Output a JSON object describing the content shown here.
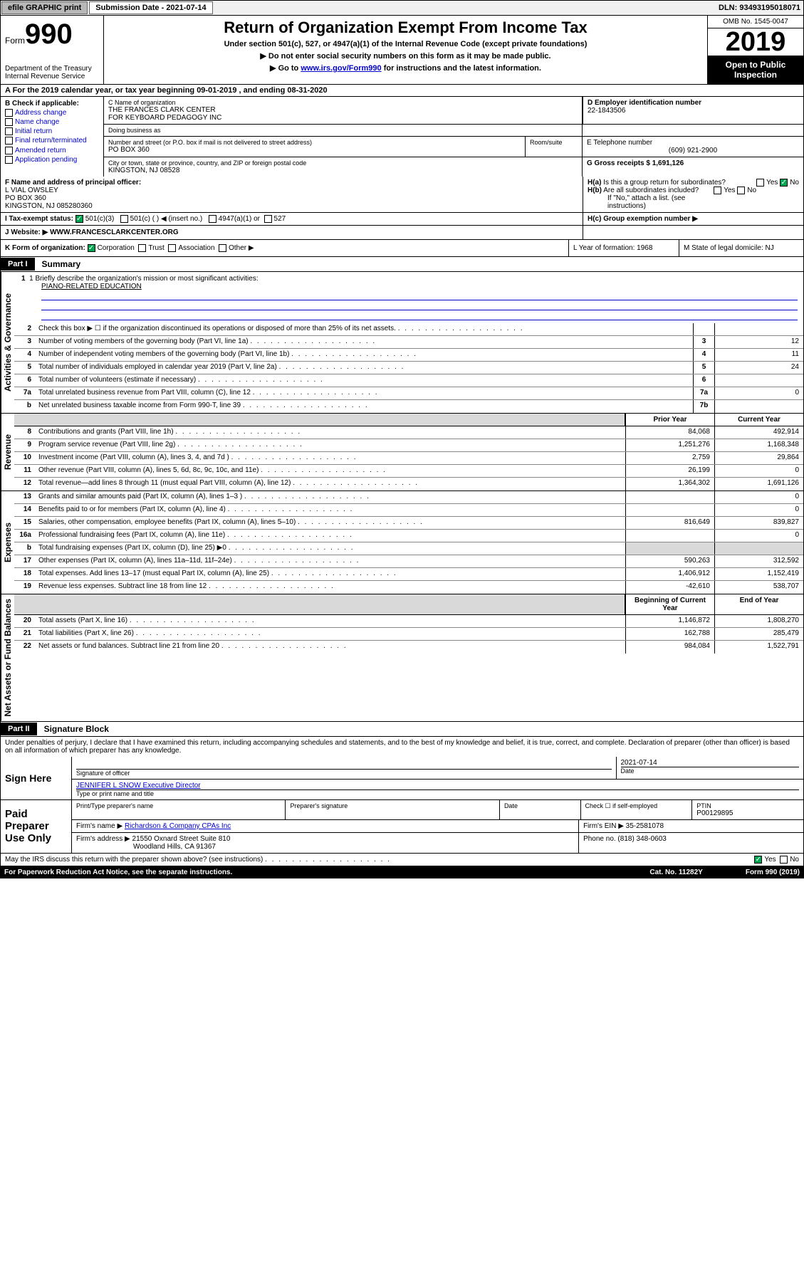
{
  "topbar": {
    "efile": "efile GRAPHIC print",
    "submission": "Submission Date - 2021-07-14",
    "dln": "DLN: 93493195018071"
  },
  "header": {
    "form_word": "Form",
    "form_num": "990",
    "dept": "Department of the Treasury",
    "irs": "Internal Revenue Service",
    "title": "Return of Organization Exempt From Income Tax",
    "subtitle": "Under section 501(c), 527, or 4947(a)(1) of the Internal Revenue Code (except private foundations)",
    "note1": "▶ Do not enter social security numbers on this form as it may be made public.",
    "note2_pre": "▶ Go to ",
    "note2_link": "www.irs.gov/Form990",
    "note2_post": " for instructions and the latest information.",
    "omb": "OMB No. 1545-0047",
    "year": "2019",
    "open": "Open to Public Inspection"
  },
  "row_a": "A For the 2019 calendar year, or tax year beginning 09-01-2019    , and ending 08-31-2020",
  "colB": {
    "hdr": "B Check if applicable:",
    "items": [
      "Address change",
      "Name change",
      "Initial return",
      "Final return/terminated",
      "Amended return",
      "Application pending"
    ]
  },
  "colC": {
    "name_label": "C Name of organization",
    "name": "THE FRANCES CLARK CENTER\nFOR KEYBOARD PEDAGOGY INC",
    "dba_label": "Doing business as",
    "dba": "",
    "addr_label": "Number and street (or P.O. box if mail is not delivered to street address)",
    "room_label": "Room/suite",
    "addr": "PO BOX 360",
    "city_label": "City or town, state or province, country, and ZIP or foreign postal code",
    "city": "KINGSTON, NJ  08528"
  },
  "colD": {
    "ein_label": "D Employer identification number",
    "ein": "22-1843506",
    "phone_label": "E Telephone number",
    "phone": "(609) 921-2900",
    "gross_label": "G Gross receipts $ ",
    "gross": "1,691,126"
  },
  "rowF": {
    "label": "F  Name and address of principal officer:",
    "name": "L VIAL OWSLEY",
    "addr1": "PO BOX 360",
    "addr2": "KINGSTON, NJ  085280360"
  },
  "rowH": {
    "ha": "H(a)  Is this a group return for subordinates?",
    "hb": "H(b)  Are all subordinates included?",
    "hb2": "If \"No,\" attach a list. (see instructions)",
    "hc": "H(c)  Group exemption number ▶"
  },
  "rowI": {
    "label": "I   Tax-exempt status:",
    "opts": [
      "501(c)(3)",
      "501(c) (  ) ◀ (insert no.)",
      "4947(a)(1) or",
      "527"
    ]
  },
  "rowJ": {
    "label": "J   Website: ▶",
    "val": "WWW.FRANCESCLARKCENTER.ORG"
  },
  "rowK": {
    "label": "K Form of organization:",
    "opts": [
      "Corporation",
      "Trust",
      "Association",
      "Other ▶"
    ],
    "l": "L Year of formation: 1968",
    "m": "M State of legal domicile: NJ"
  },
  "part1": {
    "hdr": "Part I",
    "title": "Summary"
  },
  "mission": {
    "label": "1  Briefly describe the organization's mission or most significant activities:",
    "val": "PIANO-RELATED EDUCATION"
  },
  "gov_lines": [
    {
      "n": "2",
      "t": "Check this box ▶ ☐  if the organization discontinued its operations or disposed of more than 25% of its net assets.",
      "box": "",
      "v": ""
    },
    {
      "n": "3",
      "t": "Number of voting members of the governing body (Part VI, line 1a)",
      "box": "3",
      "v": "12"
    },
    {
      "n": "4",
      "t": "Number of independent voting members of the governing body (Part VI, line 1b)",
      "box": "4",
      "v": "11"
    },
    {
      "n": "5",
      "t": "Total number of individuals employed in calendar year 2019 (Part V, line 2a)",
      "box": "5",
      "v": "24"
    },
    {
      "n": "6",
      "t": "Total number of volunteers (estimate if necessary)",
      "box": "6",
      "v": ""
    },
    {
      "n": "7a",
      "t": "Total unrelated business revenue from Part VIII, column (C), line 12",
      "box": "7a",
      "v": "0"
    },
    {
      "n": "b",
      "t": "Net unrelated business taxable income from Form 990-T, line 39",
      "box": "7b",
      "v": ""
    }
  ],
  "rev_hdr": {
    "prior": "Prior Year",
    "curr": "Current Year"
  },
  "rev_lines": [
    {
      "n": "8",
      "t": "Contributions and grants (Part VIII, line 1h)",
      "p": "84,068",
      "c": "492,914"
    },
    {
      "n": "9",
      "t": "Program service revenue (Part VIII, line 2g)",
      "p": "1,251,276",
      "c": "1,168,348"
    },
    {
      "n": "10",
      "t": "Investment income (Part VIII, column (A), lines 3, 4, and 7d )",
      "p": "2,759",
      "c": "29,864"
    },
    {
      "n": "11",
      "t": "Other revenue (Part VIII, column (A), lines 5, 6d, 8c, 9c, 10c, and 11e)",
      "p": "26,199",
      "c": "0"
    },
    {
      "n": "12",
      "t": "Total revenue—add lines 8 through 11 (must equal Part VIII, column (A), line 12)",
      "p": "1,364,302",
      "c": "1,691,126"
    }
  ],
  "exp_lines": [
    {
      "n": "13",
      "t": "Grants and similar amounts paid (Part IX, column (A), lines 1–3 )",
      "p": "",
      "c": "0"
    },
    {
      "n": "14",
      "t": "Benefits paid to or for members (Part IX, column (A), line 4)",
      "p": "",
      "c": "0"
    },
    {
      "n": "15",
      "t": "Salaries, other compensation, employee benefits (Part IX, column (A), lines 5–10)",
      "p": "816,649",
      "c": "839,827"
    },
    {
      "n": "16a",
      "t": "Professional fundraising fees (Part IX, column (A), line 11e)",
      "p": "",
      "c": "0"
    },
    {
      "n": "b",
      "t": "Total fundraising expenses (Part IX, column (D), line 25) ▶0",
      "p": "GRAY",
      "c": "GRAY"
    },
    {
      "n": "17",
      "t": "Other expenses (Part IX, column (A), lines 11a–11d, 11f–24e)",
      "p": "590,263",
      "c": "312,592"
    },
    {
      "n": "18",
      "t": "Total expenses. Add lines 13–17 (must equal Part IX, column (A), line 25)",
      "p": "1,406,912",
      "c": "1,152,419"
    },
    {
      "n": "19",
      "t": "Revenue less expenses. Subtract line 18 from line 12",
      "p": "-42,610",
      "c": "538,707"
    }
  ],
  "na_hdr": {
    "b": "Beginning of Current Year",
    "e": "End of Year"
  },
  "na_lines": [
    {
      "n": "20",
      "t": "Total assets (Part X, line 16)",
      "p": "1,146,872",
      "c": "1,808,270"
    },
    {
      "n": "21",
      "t": "Total liabilities (Part X, line 26)",
      "p": "162,788",
      "c": "285,479"
    },
    {
      "n": "22",
      "t": "Net assets or fund balances. Subtract line 21 from line 20",
      "p": "984,084",
      "c": "1,522,791"
    }
  ],
  "part2": {
    "hdr": "Part II",
    "title": "Signature Block"
  },
  "penalty": "Under penalties of perjury, I declare that I have examined this return, including accompanying schedules and statements, and to the best of my knowledge and belief, it is true, correct, and complete. Declaration of preparer (other than officer) is based on all information of which preparer has any knowledge.",
  "sign": {
    "label": "Sign Here",
    "sig_lbl": "Signature of officer",
    "date": "2021-07-14",
    "date_lbl": "Date",
    "name": "JENNIFER L SNOW  Executive Director",
    "name_lbl": "Type or print name and title"
  },
  "paid": {
    "label": "Paid Preparer Use Only",
    "r1": {
      "a": "Print/Type preparer's name",
      "b": "Preparer's signature",
      "c": "Date",
      "d": "Check ☐ if self-employed",
      "e_lbl": "PTIN",
      "e": "P00129895"
    },
    "r2": {
      "a": "Firm's name    ▶ ",
      "av": "Richardson & Company CPAs Inc",
      "b": "Firm's EIN ▶ 35-2581078"
    },
    "r3": {
      "a": "Firm's address ▶",
      "av": "21550 Oxnard Street Suite 810",
      "b": "Phone no. (818) 348-0603"
    },
    "r4": "Woodland Hills, CA  91367"
  },
  "footer": {
    "discuss": "May the IRS discuss this return with the preparer shown above? (see instructions)",
    "yes": "Yes",
    "no": "No",
    "pra": "For Paperwork Reduction Act Notice, see the separate instructions.",
    "cat": "Cat. No. 11282Y",
    "form": "Form 990 (2019)"
  },
  "tabs": {
    "gov": "Activities & Governance",
    "rev": "Revenue",
    "exp": "Expenses",
    "na": "Net Assets or Fund Balances"
  },
  "yesno": {
    "yes": "Yes",
    "no": "No"
  }
}
